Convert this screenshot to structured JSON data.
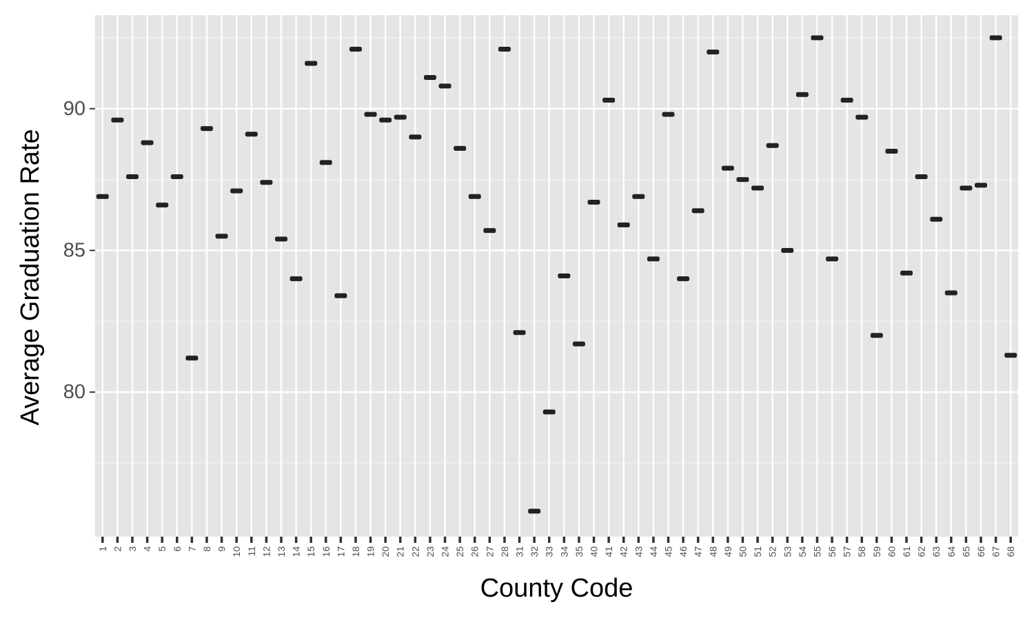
{
  "chart_data": {
    "type": "boxplot",
    "title": "",
    "xlabel": "County Code",
    "ylabel": "Average Graduation Rate",
    "ylim": [
      74.9,
      93.3
    ],
    "y_ticks": [
      80,
      85,
      90
    ],
    "y_tick_labels": [
      "80",
      "85",
      "90"
    ],
    "grid": true,
    "background": "#e5e5e5",
    "mark_color": "#222222",
    "categories": [
      "1",
      "2",
      "3",
      "4",
      "5",
      "6",
      "7",
      "8",
      "9",
      "10",
      "11",
      "12",
      "13",
      "14",
      "15",
      "16",
      "17",
      "18",
      "19",
      "20",
      "21",
      "22",
      "23",
      "24",
      "25",
      "26",
      "27",
      "28",
      "31",
      "32",
      "33",
      "34",
      "35",
      "40",
      "41",
      "42",
      "43",
      "44",
      "45",
      "46",
      "47",
      "48",
      "49",
      "50",
      "51",
      "52",
      "53",
      "54",
      "55",
      "56",
      "57",
      "58",
      "59",
      "60",
      "61",
      "62",
      "63",
      "64",
      "65",
      "66",
      "67",
      "68"
    ],
    "values": [
      86.9,
      89.6,
      87.6,
      88.8,
      86.6,
      87.6,
      81.2,
      89.3,
      85.5,
      87.1,
      89.1,
      87.4,
      85.4,
      84.0,
      91.6,
      88.1,
      83.4,
      92.1,
      89.8,
      89.6,
      89.7,
      89.0,
      91.1,
      90.8,
      88.6,
      86.9,
      85.7,
      92.1,
      82.1,
      75.8,
      79.3,
      84.1,
      81.7,
      86.7,
      90.3,
      85.9,
      86.9,
      84.7,
      89.8,
      84.0,
      86.4,
      92.0,
      87.9,
      87.5,
      87.2,
      88.7,
      85.0,
      90.5,
      92.5,
      84.7,
      90.3,
      89.7,
      82.0,
      88.5,
      84.2,
      87.6,
      86.1,
      83.5,
      87.2,
      87.3,
      92.5,
      81.3
    ]
  }
}
